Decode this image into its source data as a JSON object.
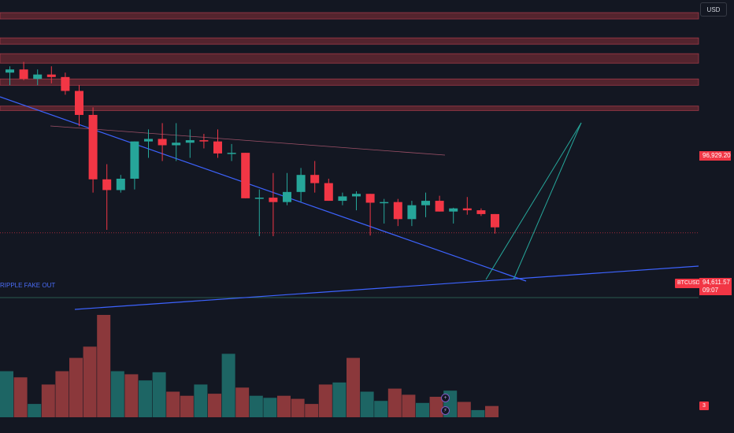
{
  "toolbar": {
    "currency_label": "USD"
  },
  "price_axis": {
    "resistance_label": "96,929.20",
    "symbol_tag": "BTCUSD",
    "last_price": "94,611.57",
    "countdown": "09:07"
  },
  "annotations": {
    "label": "RIPPLE FAKE OUT"
  },
  "volume_badge": "3",
  "colors": {
    "background": "#131722",
    "bull": "#26a69a",
    "bear": "#f23645",
    "vol_bull": "#26a69a",
    "vol_bear": "#ef5350",
    "zone": "#6b2a33",
    "trendline": "#3d63ff",
    "projection": "#26a69a"
  },
  "chart_data": {
    "type": "candlestick",
    "symbol": "BTCUSD",
    "currency": "USD",
    "ylim": [
      93500,
      98300
    ],
    "resistance_zones": [
      [
        98000,
        98100
      ],
      [
        97600,
        97700
      ],
      [
        97300,
        97450
      ],
      [
        96950,
        97050
      ],
      [
        96550,
        96620
      ]
    ],
    "reference_level": 96929.2,
    "last_price": 94611.57,
    "candles": [
      {
        "o": 97150,
        "h": 97250,
        "l": 96950,
        "c": 97200
      },
      {
        "o": 97200,
        "h": 97320,
        "l": 97030,
        "c": 97050
      },
      {
        "o": 97050,
        "h": 97200,
        "l": 96950,
        "c": 97120
      },
      {
        "o": 97120,
        "h": 97250,
        "l": 96980,
        "c": 97080
      },
      {
        "o": 97080,
        "h": 97150,
        "l": 96800,
        "c": 96860
      },
      {
        "o": 96860,
        "h": 96950,
        "l": 96300,
        "c": 96480
      },
      {
        "o": 96480,
        "h": 96600,
        "l": 95250,
        "c": 95460
      },
      {
        "o": 95460,
        "h": 95700,
        "l": 94660,
        "c": 95290
      },
      {
        "o": 95290,
        "h": 95530,
        "l": 95250,
        "c": 95470
      },
      {
        "o": 95470,
        "h": 96060,
        "l": 95300,
        "c": 96060
      },
      {
        "o": 96060,
        "h": 96250,
        "l": 95800,
        "c": 96100
      },
      {
        "o": 96100,
        "h": 96350,
        "l": 95750,
        "c": 96000
      },
      {
        "o": 96000,
        "h": 96350,
        "l": 95750,
        "c": 96040
      },
      {
        "o": 96040,
        "h": 96250,
        "l": 95800,
        "c": 96080
      },
      {
        "o": 96080,
        "h": 96180,
        "l": 95950,
        "c": 96060
      },
      {
        "o": 96060,
        "h": 96250,
        "l": 95800,
        "c": 95870
      },
      {
        "o": 95870,
        "h": 96020,
        "l": 95750,
        "c": 95880
      },
      {
        "o": 95880,
        "h": 95880,
        "l": 95160,
        "c": 95160
      },
      {
        "o": 95160,
        "h": 95300,
        "l": 94560,
        "c": 95170
      },
      {
        "o": 95170,
        "h": 95560,
        "l": 94560,
        "c": 95100
      },
      {
        "o": 95100,
        "h": 95560,
        "l": 95050,
        "c": 95260
      },
      {
        "o": 95260,
        "h": 95640,
        "l": 95100,
        "c": 95530
      },
      {
        "o": 95530,
        "h": 95750,
        "l": 95250,
        "c": 95400
      },
      {
        "o": 95400,
        "h": 95470,
        "l": 95120,
        "c": 95120
      },
      {
        "o": 95120,
        "h": 95250,
        "l": 95050,
        "c": 95190
      },
      {
        "o": 95190,
        "h": 95270,
        "l": 94970,
        "c": 95230
      },
      {
        "o": 95230,
        "h": 95230,
        "l": 94570,
        "c": 95090
      },
      {
        "o": 95090,
        "h": 95150,
        "l": 94760,
        "c": 95100
      },
      {
        "o": 95100,
        "h": 95150,
        "l": 94720,
        "c": 94830
      },
      {
        "o": 94830,
        "h": 95120,
        "l": 94720,
        "c": 95050
      },
      {
        "o": 95050,
        "h": 95250,
        "l": 94860,
        "c": 95120
      },
      {
        "o": 95120,
        "h": 95200,
        "l": 94950,
        "c": 94950
      },
      {
        "o": 94950,
        "h": 95010,
        "l": 94760,
        "c": 95000
      },
      {
        "o": 95000,
        "h": 95180,
        "l": 94900,
        "c": 94970
      },
      {
        "o": 94970,
        "h": 95000,
        "l": 94880,
        "c": 94910
      },
      {
        "o": 94910,
        "h": 94910,
        "l": 94600,
        "c": 94700
      }
    ],
    "volume": [
      0.45,
      0.39,
      0.13,
      0.32,
      0.45,
      0.58,
      0.69,
      1.0,
      0.45,
      0.42,
      0.36,
      0.44,
      0.25,
      0.21,
      0.32,
      0.23,
      0.62,
      0.29,
      0.21,
      0.19,
      0.21,
      0.18,
      0.13,
      0.32,
      0.34,
      0.58,
      0.25,
      0.16,
      0.28,
      0.22,
      0.14,
      0.2,
      0.26,
      0.15,
      0.07,
      0.11
    ],
    "volume_up": [
      true,
      false,
      true,
      false,
      false,
      false,
      false,
      false,
      true,
      false,
      true,
      true,
      false,
      false,
      true,
      false,
      true,
      false,
      true,
      true,
      false,
      false,
      false,
      false,
      true,
      false,
      true,
      true,
      false,
      false,
      true,
      false,
      true,
      false,
      true,
      false
    ]
  }
}
